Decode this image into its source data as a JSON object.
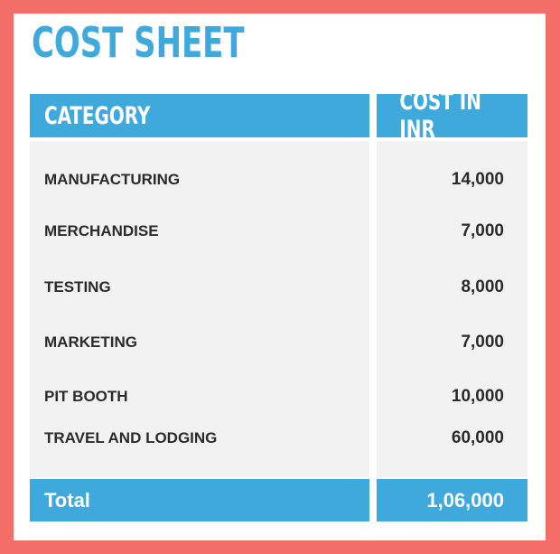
{
  "title": "COST SHEET",
  "header": {
    "category": "CATEGORY",
    "cost": "COST IN INR"
  },
  "rows": [
    {
      "category": "MANUFACTURING",
      "cost": "14,000"
    },
    {
      "category": "MERCHANDISE",
      "cost": "7,000"
    },
    {
      "category": "TESTING",
      "cost": "8,000"
    },
    {
      "category": "MARKETING",
      "cost": "7,000"
    },
    {
      "category": "PIT BOOTH",
      "cost": "10,000"
    },
    {
      "category": "TRAVEL AND LODGING",
      "cost": "60,000"
    }
  ],
  "total": {
    "label": "Total",
    "value": "1,06,000"
  },
  "colors": {
    "border": "#f26e67",
    "accent": "#3fa9dc",
    "row_bg": "#f2f2f2",
    "text": "#2b2b2b"
  }
}
